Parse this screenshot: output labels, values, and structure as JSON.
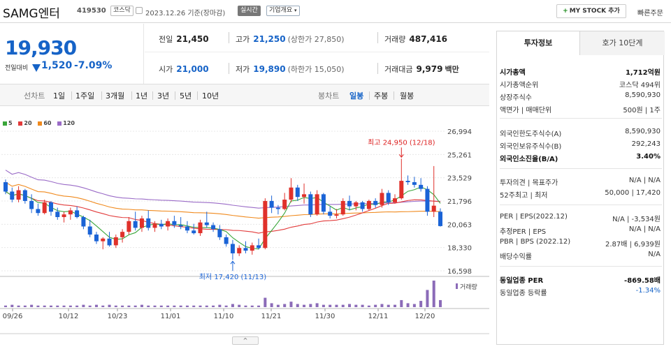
{
  "header": {
    "stock_name": "SAMG엔터",
    "stock_code": "419530",
    "market_badge": "코스닥",
    "date_text": "2023.12.26 기준(장마감)",
    "live_badge": "실시간",
    "company_overview": "기업개요",
    "my_stock_button": "MY STOCK 추가",
    "quick_order": "빠른주문"
  },
  "price": {
    "current": "19,930",
    "change_label": "전일대비",
    "change_value": "1,520",
    "change_percent": "-7.09%",
    "direction": "down"
  },
  "quotes": {
    "prev_close_label": "전일",
    "prev_close": "21,450",
    "high_label": "고가",
    "high": "21,250",
    "upper_limit": "(상한가 27,850)",
    "volume_label": "거래량",
    "volume": "487,416",
    "open_label": "시가",
    "open": "21,000",
    "low_label": "저가",
    "low": "19,890",
    "lower_limit": "(하한가 15,050)",
    "amount_label": "거래대금",
    "amount": "9,979",
    "amount_unit": "백만"
  },
  "period_bar": {
    "line_chart_label": "선차트",
    "line_periods": [
      "1일",
      "1주일",
      "3개월",
      "1년",
      "3년",
      "5년",
      "10년"
    ],
    "candle_chart_label": "봉차트",
    "candle_periods": [
      "일봉",
      "주봉",
      "월봉"
    ],
    "selected_candle": "일봉"
  },
  "legend": [
    {
      "label": "5",
      "color": "#3aa63a"
    },
    {
      "label": "20",
      "color": "#e23b3b"
    },
    {
      "label": "60",
      "color": "#f08a1e"
    },
    {
      "label": "120",
      "color": "#9a6bc7"
    }
  ],
  "chart_data": {
    "type": "candlestick",
    "y_ticks": [
      "26,994",
      "25,261",
      "23,529",
      "21,796",
      "20,063",
      "18,330",
      "16,598"
    ],
    "ylim": [
      16598,
      26994
    ],
    "x_ticks": [
      "09/26",
      "10/12",
      "10/23",
      "11/01",
      "11/10",
      "11/21",
      "11/30",
      "12/11",
      "12/20"
    ],
    "annotation_high": "최고 24,950 (12/18)",
    "annotation_low": "최저 17,420 (11/13)",
    "volume_label": "거래량",
    "up_color": "#e0312b",
    "down_color": "#1a63d6",
    "candles": [
      [
        23200,
        23400,
        22300,
        22500
      ],
      [
        22500,
        22800,
        21700,
        21900
      ],
      [
        21900,
        22900,
        21700,
        22600
      ],
      [
        22600,
        22700,
        21600,
        21800
      ],
      [
        21800,
        22300,
        20900,
        21200
      ],
      [
        21200,
        21600,
        20700,
        20900
      ],
      [
        20900,
        21900,
        20800,
        21700
      ],
      [
        21700,
        21800,
        20700,
        21000
      ],
      [
        21000,
        21300,
        20400,
        20600
      ],
      [
        20600,
        21000,
        20200,
        20800
      ],
      [
        20800,
        21300,
        20400,
        21100
      ],
      [
        21100,
        21400,
        20500,
        20600
      ],
      [
        20600,
        20700,
        19700,
        19900
      ],
      [
        19900,
        20400,
        19100,
        19300
      ],
      [
        19300,
        19500,
        18600,
        18800
      ],
      [
        18800,
        19100,
        18200,
        19000
      ],
      [
        19000,
        19500,
        18400,
        18500
      ],
      [
        18500,
        19300,
        18300,
        19100
      ],
      [
        19100,
        19700,
        18700,
        19500
      ],
      [
        19500,
        20600,
        19300,
        20300
      ],
      [
        20300,
        21000,
        19600,
        19800
      ],
      [
        19800,
        20700,
        19500,
        20500
      ],
      [
        20500,
        21100,
        19600,
        19800
      ],
      [
        19800,
        20300,
        19500,
        20100
      ],
      [
        20100,
        20400,
        19700,
        19900
      ],
      [
        19900,
        20500,
        19600,
        20300
      ],
      [
        20300,
        20700,
        19800,
        20000
      ],
      [
        20000,
        20600,
        19700,
        19900
      ],
      [
        19900,
        20300,
        19400,
        19600
      ],
      [
        19600,
        20100,
        19300,
        19400
      ],
      [
        19400,
        20400,
        19200,
        20200
      ],
      [
        20200,
        21000,
        19800,
        20000
      ],
      [
        20000,
        20200,
        19500,
        19700
      ],
      [
        19700,
        20000,
        18900,
        19100
      ],
      [
        19100,
        19300,
        18400,
        18600
      ],
      [
        18600,
        18900,
        17420,
        17900
      ],
      [
        17900,
        18500,
        17700,
        18300
      ],
      [
        18300,
        18800,
        17900,
        18100
      ],
      [
        18100,
        18700,
        17800,
        18500
      ],
      [
        18500,
        19000,
        18200,
        18300
      ],
      [
        18300,
        22000,
        18200,
        21800
      ],
      [
        21800,
        22200,
        20900,
        21300
      ],
      [
        21300,
        21500,
        20800,
        21200
      ],
      [
        21200,
        22400,
        21100,
        21900
      ],
      [
        21900,
        23500,
        21700,
        22800
      ],
      [
        22800,
        23000,
        21800,
        22100
      ],
      [
        22100,
        23100,
        21600,
        22300
      ],
      [
        22300,
        22500,
        20600,
        20800
      ],
      [
        20800,
        22600,
        20700,
        22300
      ],
      [
        22300,
        22400,
        20800,
        21000
      ],
      [
        21000,
        21400,
        20500,
        20700
      ],
      [
        20700,
        21200,
        20500,
        20800
      ],
      [
        20800,
        22000,
        20700,
        21800
      ],
      [
        21800,
        22200,
        21100,
        21400
      ],
      [
        21400,
        21800,
        21100,
        21700
      ],
      [
        21700,
        21800,
        21000,
        21200
      ],
      [
        21200,
        21900,
        21100,
        21800
      ],
      [
        21800,
        22000,
        21300,
        21500
      ],
      [
        21500,
        22700,
        21300,
        22400
      ],
      [
        22400,
        22600,
        21500,
        21700
      ],
      [
        21700,
        22300,
        21600,
        22000
      ],
      [
        22000,
        24950,
        21900,
        23300
      ],
      [
        23300,
        23700,
        23000,
        23200
      ],
      [
        23200,
        23600,
        22800,
        23000
      ],
      [
        23000,
        23500,
        22500,
        22700
      ],
      [
        22700,
        22900,
        20700,
        21000
      ],
      [
        21000,
        24400,
        20600,
        21450
      ],
      [
        21000,
        21250,
        19890,
        19930
      ]
    ],
    "volumes": [
      2,
      3,
      2,
      2,
      3,
      2,
      2,
      2,
      2,
      2,
      2,
      2,
      3,
      2,
      3,
      2,
      3,
      2,
      2,
      2,
      2,
      3,
      2,
      2,
      2,
      2,
      2,
      2,
      2,
      2,
      2,
      2,
      2,
      3,
      2,
      4,
      3,
      2,
      2,
      2,
      12,
      5,
      3,
      4,
      7,
      4,
      3,
      4,
      5,
      3,
      3,
      3,
      3,
      4,
      3,
      3,
      2,
      3,
      4,
      3,
      3,
      9,
      5,
      4,
      8,
      22,
      34,
      9
    ]
  },
  "investment_info": {
    "tab_active": "투자정보",
    "tab_other": "호가 10단계",
    "rows": [
      {
        "k": "시가총액",
        "v": "1,712억원",
        "bold": true
      },
      {
        "k": "시가총액순위",
        "v": "코스닥 494위"
      },
      {
        "k": "상장주식수",
        "v": "8,590,930"
      },
      {
        "k": "액면가 | 매매단위",
        "v": "500원 | 1주"
      },
      {
        "k": "외국인한도주식수(A)",
        "v": "8,590,930"
      },
      {
        "k": "외국인보유주식수(B)",
        "v": "292,243"
      },
      {
        "k": "외국인소진율(B/A)",
        "v": "3.40%",
        "bold": true
      },
      {
        "k": "투자의견 | 목표주가",
        "v": "N/A | N/A"
      },
      {
        "k": "52주최고 | 최저",
        "v": "50,000 | 17,420"
      },
      {
        "k": "PER | EPS(2022.12)",
        "v": "N/A | -3,534원"
      },
      {
        "k": "추정PER | EPS",
        "v": "N/A | N/A"
      },
      {
        "k": "PBR | BPS (2022.12)",
        "v": "2.87배 | 6,939원"
      },
      {
        "k": "배당수익률",
        "v": "N/A"
      },
      {
        "k": "동일업종 PER",
        "v": "-869.58배",
        "bold": true
      },
      {
        "k": "동일업종 등락률",
        "v": "-1.34%",
        "blue": true
      }
    ]
  },
  "bottom_toggle": "^"
}
